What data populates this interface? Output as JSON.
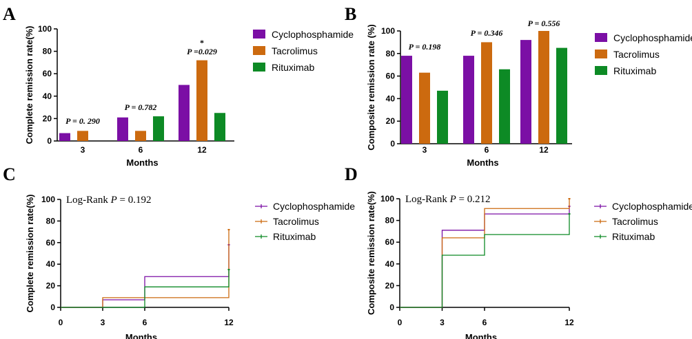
{
  "colors": {
    "cyclophosphamide": "#7b0fa5",
    "tacrolimus": "#cc6a0f",
    "rituximab": "#0d8a25"
  },
  "chart_data": [
    {
      "panel": "A",
      "type": "bar",
      "categories": [
        "3",
        "6",
        "12"
      ],
      "series": [
        {
          "name": "Cyclophosphamide",
          "values": [
            7,
            21,
            50
          ]
        },
        {
          "name": "Tacrolimus",
          "values": [
            9,
            9,
            72
          ]
        },
        {
          "name": "Rituximab",
          "values": [
            0,
            22,
            25
          ]
        }
      ],
      "xlabel": "Months",
      "ylabel": "Complete remission rate(%)",
      "ylim": [
        0,
        100
      ],
      "yticks": [
        0,
        20,
        40,
        60,
        80,
        100
      ],
      "annotations": [
        {
          "category": "3",
          "text": "P = 0. 290"
        },
        {
          "category": "6",
          "text": "P = 0.782"
        },
        {
          "category": "12",
          "text": "P =0.029",
          "star": "*"
        }
      ],
      "legend_position": "right"
    },
    {
      "panel": "B",
      "type": "bar",
      "categories": [
        "3",
        "6",
        "12"
      ],
      "series": [
        {
          "name": "Cyclophosphamide",
          "values": [
            78,
            78,
            92
          ]
        },
        {
          "name": "Tacrolimus",
          "values": [
            63,
            90,
            100
          ]
        },
        {
          "name": "Rituximab",
          "values": [
            47,
            66,
            85
          ]
        }
      ],
      "xlabel": "Months",
      "ylabel": "Composite remission rate (%)",
      "ylim": [
        0,
        100
      ],
      "yticks": [
        0,
        20,
        40,
        60,
        80,
        100
      ],
      "annotations": [
        {
          "category": "3",
          "text": "P = 0.198"
        },
        {
          "category": "6",
          "text": "P = 0.346"
        },
        {
          "category": "12",
          "text": "P = 0.556"
        }
      ],
      "legend_position": "right"
    },
    {
      "panel": "C",
      "type": "line",
      "step": true,
      "x_ticks": [
        0,
        3,
        6,
        12
      ],
      "xlim": [
        0,
        12
      ],
      "series": [
        {
          "name": "Cyclophosphamide",
          "x": [
            0,
            3,
            6,
            12
          ],
          "y": [
            0,
            7,
            28.5,
            58
          ]
        },
        {
          "name": "Tacrolimus",
          "x": [
            0,
            3,
            6,
            12
          ],
          "y": [
            0,
            9,
            9,
            72
          ]
        },
        {
          "name": "Rituximab",
          "x": [
            0,
            3,
            6,
            12
          ],
          "y": [
            0,
            0,
            19,
            35
          ]
        }
      ],
      "xlabel": "Months",
      "ylabel": "Complete remission rate(%)",
      "ylim": [
        0,
        100
      ],
      "yticks": [
        0,
        20,
        40,
        60,
        80,
        100
      ],
      "annotation": {
        "prefix": "Log-Rank ",
        "p": "P",
        "rest": " = 0.192"
      },
      "legend_position": "right"
    },
    {
      "panel": "D",
      "type": "line",
      "step": true,
      "x_ticks": [
        0,
        3,
        6,
        12
      ],
      "xlim": [
        0,
        12
      ],
      "series": [
        {
          "name": "Cyclophosphamide",
          "x": [
            0,
            3,
            6,
            12
          ],
          "y": [
            0,
            71,
            86,
            93
          ]
        },
        {
          "name": "Tacrolimus",
          "x": [
            0,
            3,
            6,
            12
          ],
          "y": [
            0,
            64,
            91,
            100
          ]
        },
        {
          "name": "Rituximab",
          "x": [
            0,
            3,
            6,
            12
          ],
          "y": [
            0,
            48,
            67,
            86
          ]
        }
      ],
      "xlabel": "Months",
      "ylabel": "Composite remission rate(%)",
      "ylim": [
        0,
        100
      ],
      "yticks": [
        0,
        20,
        40,
        60,
        80,
        100
      ],
      "annotation": {
        "prefix": "Log-Rank ",
        "p": "P",
        "rest": " = 0.212"
      },
      "legend_position": "right"
    }
  ]
}
